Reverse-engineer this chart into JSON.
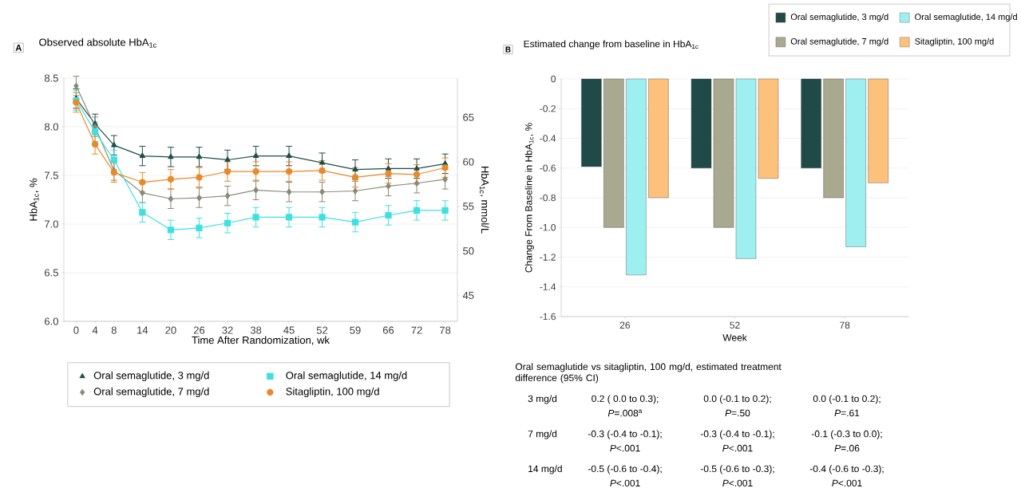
{
  "chart_data": [
    {
      "type": "line",
      "title": "Observed absolute HbA$_{1c}$",
      "xlabel": "Time After Randomization, wk",
      "ylabel": "HbA$_{1c}$, %",
      "y2label": "HbA$_{1c}$, mmol/L",
      "annotations": [
        "A"
      ],
      "xlim": [
        -2.6,
        80.6
      ],
      "xticks": [
        0,
        4,
        8,
        14,
        20,
        26,
        32,
        38,
        45,
        52,
        59,
        66,
        72,
        78
      ],
      "ylim": [
        6,
        8.5
      ],
      "yticks": [
        {
          "value": 6,
          "label": "6.0"
        },
        6.5,
        {
          "value": 7,
          "label": "7.0"
        },
        7.5,
        {
          "value": 8,
          "label": "8.0"
        },
        8.5
      ],
      "y2lim": [
        42.1,
        69.4
      ],
      "y2ticks": [
        45,
        50,
        55,
        60,
        65
      ],
      "x": [
        0,
        4,
        8,
        14,
        20,
        26,
        32,
        38,
        45,
        52,
        59,
        66,
        72,
        78
      ],
      "grid": "y",
      "legend": "bottom",
      "line_style": "solid",
      "series": [
        {
          "name": "Oral semaglutide, 3 mg/d",
          "color": "#1e4d4a",
          "marker": "triangle",
          "values": [
            8.29,
            8.03,
            7.81,
            7.7,
            7.69,
            7.69,
            7.66,
            7.7,
            7.7,
            7.63,
            7.56,
            7.57,
            7.57,
            7.62
          ],
          "errors": [
            0.1,
            0.1,
            0.1,
            0.1,
            0.1,
            0.1,
            0.1,
            0.1,
            0.1,
            0.1,
            0.1,
            0.1,
            0.1,
            0.1
          ]
        },
        {
          "name": "Oral semaglutide, 7 mg/d",
          "color": "#8a8a76",
          "marker": "diamond",
          "values": [
            8.42,
            8.0,
            7.55,
            7.32,
            7.26,
            7.27,
            7.29,
            7.35,
            7.33,
            7.33,
            7.34,
            7.39,
            7.42,
            7.46
          ],
          "errors": [
            0.1,
            0.1,
            0.1,
            0.1,
            0.1,
            0.1,
            0.1,
            0.1,
            0.1,
            0.1,
            0.1,
            0.1,
            0.1,
            0.1
          ]
        },
        {
          "name": "Oral semaglutide, 14 mg/d",
          "color": "#3ee0e0",
          "marker": "square",
          "values": [
            8.27,
            7.95,
            7.66,
            7.12,
            6.94,
            6.96,
            7.01,
            7.07,
            7.07,
            7.07,
            7.02,
            7.09,
            7.14,
            7.14
          ],
          "errors": [
            0.1,
            0.1,
            0.1,
            0.1,
            0.1,
            0.1,
            0.1,
            0.1,
            0.1,
            0.1,
            0.1,
            0.1,
            0.1,
            0.1
          ]
        },
        {
          "name": "Sitagliptin, 100 mg/d",
          "color": "#e8892a",
          "marker": "circle",
          "values": [
            8.25,
            7.82,
            7.53,
            7.43,
            7.46,
            7.48,
            7.54,
            7.54,
            7.54,
            7.55,
            7.48,
            7.52,
            7.51,
            7.58
          ],
          "errors": [
            0.1,
            0.1,
            0.1,
            0.1,
            0.1,
            0.1,
            0.1,
            0.1,
            0.1,
            0.1,
            0.1,
            0.1,
            0.1,
            0.1
          ]
        }
      ]
    },
    {
      "type": "bar",
      "title": "Estimated change from baseline in HbA$_{1c}$",
      "xlabel": "Week",
      "ylabel": "Change From Baseline in HbA$_{1c}$, %",
      "annotations": [
        "B",
        "Oral semaglutide vs sitagliptin, 100 mg/d, estimated treatment difference (95% CI)",
        "3 mg/d",
        "0.2 ( 0.0 to 0.3);",
        "*P*=.008$^{a}$",
        "0.0 (-0.1 to 0.2);",
        "*P*=.50",
        "0.0 (-0.1 to 0.2);",
        "*P*=.61",
        "7 mg/d",
        "-0.3 (-0.4 to -0.1);",
        "*P*<.001",
        "-0.3 (-0.4 to -0.1);",
        "*P*<.001",
        "-0.1 (-0.3 to 0.0);",
        "*P*=.06",
        "14 mg/d",
        "-0.5 (-0.6 to -0.4);",
        "*P*<.001",
        "-0.5 (-0.6 to -0.3);",
        "*P*<.001",
        "-0.4 (-0.6 to -0.3);",
        "*P*<.001"
      ],
      "categories": [
        "26",
        "52",
        "78"
      ],
      "ylim": [
        -1.6,
        0
      ],
      "yticks": [
        -1.6,
        -1.4,
        -1.2,
        {
          "value": -1,
          "label": "-1.0"
        },
        -0.8,
        -0.6,
        -0.4,
        -0.2,
        0
      ],
      "grid": "y",
      "legend": "top right",
      "series": [
        {
          "name": "Oral semaglutide, 3 mg/d",
          "color": "#1f4a47",
          "values": [
            -0.59,
            -0.6,
            -0.6
          ]
        },
        {
          "name": "Oral semaglutide, 7 mg/d",
          "color": "#a9a990",
          "values": [
            -1.0,
            -1.0,
            -0.8
          ]
        },
        {
          "name": "Oral semaglutide, 14 mg/d",
          "color": "#9ef0f0",
          "values": [
            -1.32,
            -1.21,
            -1.13
          ]
        },
        {
          "name": "Sitagliptin, 100 mg/d",
          "color": "#fcc27c",
          "values": [
            -0.8,
            -0.67,
            -0.7
          ]
        }
      ]
    }
  ]
}
